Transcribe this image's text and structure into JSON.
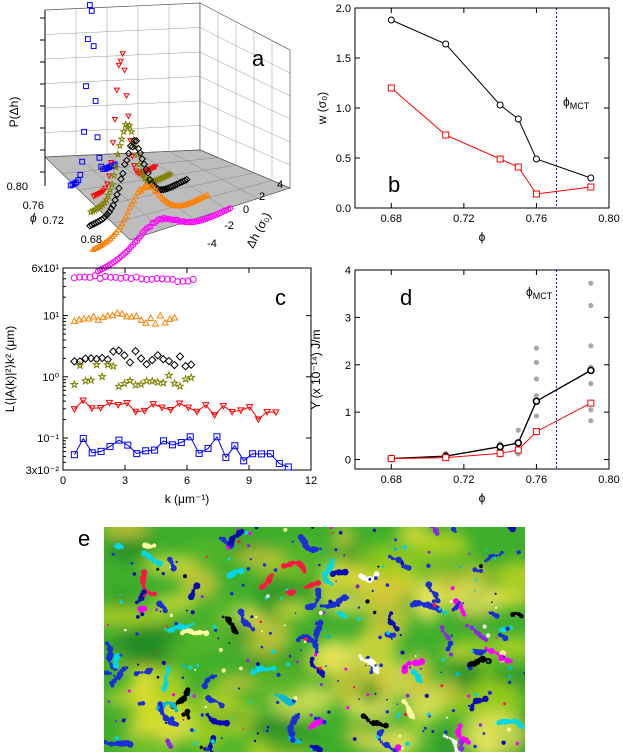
{
  "figure": {
    "panels": {
      "a": "a",
      "b": "b",
      "c": "c",
      "d": "d",
      "e": "e"
    }
  },
  "chart_data": [
    {
      "id": "a",
      "type": "line",
      "ylabel": "P(Δh)",
      "xlabel": "Δh (σ₀)",
      "phi_label": "ϕ",
      "phi_ticks": [
        "0.80",
        "0.76",
        "0.72",
        "0.68"
      ],
      "dh_ticks": [
        "-4",
        "-2",
        "0",
        "2",
        "4"
      ],
      "series": [
        {
          "phi": 0.79,
          "color": "#0000ff",
          "marker": "square"
        },
        {
          "phi": 0.76,
          "color": "#ff0000",
          "marker": "triangle-down"
        },
        {
          "phi": 0.75,
          "color": "#808000",
          "marker": "star"
        },
        {
          "phi": 0.74,
          "color": "#000000",
          "marker": "diamond"
        },
        {
          "phi": 0.71,
          "color": "#ff8000",
          "marker": "triangle-up"
        },
        {
          "phi": 0.68,
          "color": "#ff00ff",
          "marker": "circle"
        }
      ]
    },
    {
      "id": "b",
      "type": "line",
      "xlabel": "ϕ",
      "ylabel": "w (σ₀)",
      "xlim": [
        0.66,
        0.8
      ],
      "ylim": [
        0,
        2.0
      ],
      "xticks": [
        0.68,
        0.72,
        0.76,
        0.8
      ],
      "xtick_labels": [
        "0.68",
        "0.72",
        "0.76",
        "0.80"
      ],
      "yticks": [
        0,
        0.5,
        1.0,
        1.5,
        2.0
      ],
      "ytick_labels": [
        "0.0",
        "0.5",
        "1.0",
        "1.5",
        "2.0"
      ],
      "vline": {
        "x": 0.771,
        "label": "ϕ",
        "sub": "MCT",
        "color": "#0000cc"
      },
      "series": [
        {
          "color": "#000000",
          "marker": "circle",
          "x": [
            0.68,
            0.71,
            0.74,
            0.75,
            0.76,
            0.79
          ],
          "values": [
            1.88,
            1.64,
            1.03,
            0.89,
            0.49,
            0.3
          ]
        },
        {
          "color": "#ff0000",
          "marker": "square",
          "x": [
            0.68,
            0.71,
            0.74,
            0.75,
            0.76,
            0.79
          ],
          "values": [
            1.2,
            0.73,
            0.49,
            0.41,
            0.14,
            0.21
          ]
        }
      ]
    },
    {
      "id": "c",
      "type": "line",
      "xlabel": "k (μm⁻¹)",
      "ylabel": "L⟨|A(k)|²⟩k² (μm)",
      "xlim": [
        0,
        12
      ],
      "ylim": [
        0.03,
        60
      ],
      "log_y": true,
      "xticks": [
        0,
        3,
        6,
        9,
        12
      ],
      "xtick_labels": [
        "0",
        "3",
        "6",
        "9",
        "12"
      ],
      "yticks": [
        0.03,
        0.1,
        1,
        10,
        60
      ],
      "ytick_labels": [
        "3x10⁻²",
        "10⁻¹",
        "10⁰",
        "10¹",
        "6x10¹"
      ],
      "series": [
        {
          "color": "#ff00ff",
          "marker": "circle",
          "connect": false,
          "kmax": 6.3,
          "level": 45,
          "amp": 0.03,
          "n": 24
        },
        {
          "color": "#ff8000",
          "marker": "triangle-up",
          "connect": false,
          "kmax": 5.4,
          "level": 10,
          "amp": 0.08,
          "n": 22
        },
        {
          "color": "#000000",
          "marker": "diamond",
          "connect": false,
          "kmax": 6.2,
          "level": 2.4,
          "amp": 0.12,
          "n": 22
        },
        {
          "color": "#808000",
          "marker": "star",
          "connect": false,
          "kmax": 6.2,
          "level": 1.15,
          "amp": 0.18,
          "n": 22
        },
        {
          "color": "#ff0000",
          "marker": "triangle-down",
          "connect": true,
          "kmax": 10.3,
          "level": 0.38,
          "amp": 0.1,
          "n": 24
        },
        {
          "color": "#0000ff",
          "marker": "square",
          "connect": true,
          "kmax": 10.9,
          "level": 0.09,
          "amp": 0.22,
          "n": 25
        }
      ]
    },
    {
      "id": "d",
      "type": "line",
      "xlabel": "ϕ",
      "ylabel": "Y (x 10⁻¹⁴) J/m",
      "xlim": [
        0.66,
        0.8
      ],
      "ylim": [
        -0.2,
        4.0
      ],
      "xticks": [
        0.68,
        0.72,
        0.76,
        0.8
      ],
      "xtick_labels": [
        "0.68",
        "0.72",
        "0.76",
        "0.80"
      ],
      "yticks": [
        0,
        1,
        2,
        3,
        4
      ],
      "ytick_labels": [
        "0",
        "1",
        "2",
        "3",
        "4"
      ],
      "vline": {
        "x": 0.771,
        "label": "ϕ",
        "sub": "MCT",
        "color": "#0000cc"
      },
      "scatter": {
        "color": "#a8a8a8",
        "x": [
          0.68,
          0.68,
          0.71,
          0.71,
          0.71,
          0.74,
          0.74,
          0.74,
          0.75,
          0.75,
          0.75,
          0.76,
          0.76,
          0.76,
          0.76,
          0.76,
          0.76,
          0.79,
          0.79,
          0.79,
          0.79,
          0.79,
          0.79,
          0.79
        ],
        "values": [
          0.02,
          0.04,
          0.05,
          0.09,
          0.13,
          0.09,
          0.22,
          0.33,
          0.12,
          0.36,
          0.62,
          0.6,
          0.92,
          1.35,
          1.7,
          2.05,
          2.35,
          0.82,
          1.05,
          1.6,
          1.95,
          2.4,
          3.25,
          3.72
        ]
      },
      "series": [
        {
          "color": "#000000",
          "marker": "circle",
          "x": [
            0.68,
            0.71,
            0.74,
            0.75,
            0.76,
            0.79
          ],
          "values": [
            0.02,
            0.07,
            0.27,
            0.35,
            1.23,
            1.88
          ]
        },
        {
          "color": "#ff0000",
          "marker": "square",
          "x": [
            0.68,
            0.71,
            0.74,
            0.75,
            0.76,
            0.79
          ],
          "values": [
            0.02,
            0.04,
            0.13,
            0.2,
            0.59,
            1.19
          ]
        }
      ]
    }
  ],
  "image_e": {
    "background": "#3fae2c",
    "particle_colors": [
      "#1a2fd6",
      "#0b0bb0",
      "#00d8e8",
      "#ff1744",
      "#ff00ff",
      "#8a2be2",
      "#000000",
      "#ffffff",
      "#ffffa0",
      "#00bcd4"
    ]
  }
}
